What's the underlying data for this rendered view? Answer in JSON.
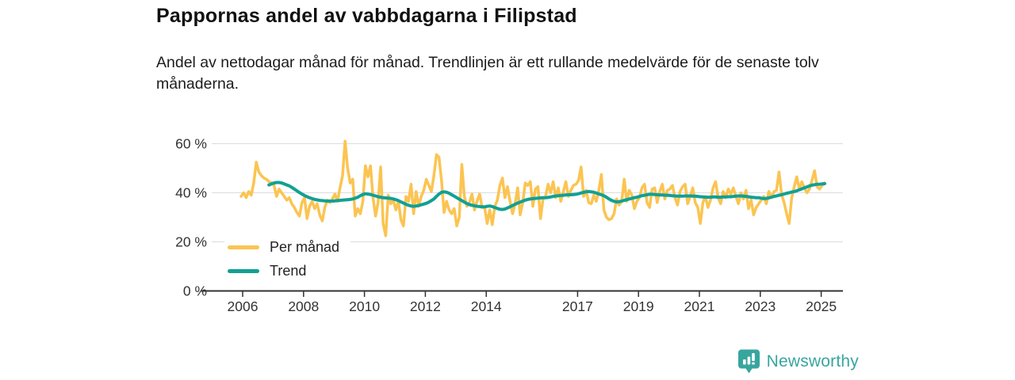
{
  "title": "Pappornas andel av vabbdagarna i Filipstad",
  "subtitle": "Andel av nettodagar månad för månad. Trendlinjen är ett rullande medelvärde för de senaste tolv månaderna.",
  "branding": {
    "logo_text": "Newsworthy",
    "logo_color": "#38a59f"
  },
  "colors": {
    "monthly_line": "#fbc452",
    "trend_line": "#12a093",
    "grid": "#dcdcdc",
    "axis": "#333333"
  },
  "chart_data": {
    "type": "line",
    "x_start": "2006-01",
    "x_end": "2025-03",
    "x_unit": "month",
    "grid": true,
    "legend_position": "bottom-left-inside",
    "yticks": [
      {
        "label": "0 %",
        "value": 0
      },
      {
        "label": "20 %",
        "value": 20
      },
      {
        "label": "40 %",
        "value": 40
      },
      {
        "label": "60 %",
        "value": 60
      }
    ],
    "ylim": [
      0,
      63
    ],
    "xticks": [
      {
        "label": "2006",
        "year": 2006
      },
      {
        "label": "2008",
        "year": 2008
      },
      {
        "label": "2010",
        "year": 2010
      },
      {
        "label": "2012",
        "year": 2012
      },
      {
        "label": "2014",
        "year": 2014
      },
      {
        "label": "2017",
        "year": 2017
      },
      {
        "label": "2019",
        "year": 2019
      },
      {
        "label": "2021",
        "year": 2021
      },
      {
        "label": "2023",
        "year": 2023
      },
      {
        "label": "2025",
        "year": 2025
      }
    ],
    "series": [
      {
        "name": "Per månad",
        "color": "#fbc452",
        "stroke_width": 3.5,
        "start_month_index": 0,
        "values": [
          38.5,
          40,
          38,
          40.5,
          39,
          44,
          52.5,
          48.5,
          47,
          46,
          45.5,
          44.5,
          44,
          43,
          38.5,
          41.5,
          40,
          38.5,
          37,
          38,
          35.5,
          34,
          32,
          30.5,
          36,
          38,
          29.5,
          34.5,
          36.5,
          33.5,
          35.5,
          31,
          28.5,
          34,
          37,
          36,
          37.5,
          39.5,
          36.5,
          42,
          47,
          61,
          50,
          44,
          45.5,
          30.5,
          33.5,
          31.5,
          36.5,
          51,
          46.5,
          51,
          38,
          30.5,
          36,
          50.5,
          27.5,
          22.5,
          39,
          35.5,
          37,
          33,
          36.5,
          29,
          26.5,
          38.5,
          36.5,
          43.5,
          31.5,
          40.5,
          34.5,
          38.5,
          41,
          45.5,
          43,
          40.5,
          47,
          55.5,
          54.5,
          45,
          32,
          36.5,
          33,
          31.5,
          33.5,
          26.5,
          30,
          51.5,
          38.5,
          34.5,
          36,
          39.5,
          33,
          36.5,
          39.5,
          34,
          34,
          27.5,
          33,
          27,
          34.5,
          37,
          43,
          46,
          38,
          42.5,
          36.5,
          31.5,
          35.5,
          42,
          31,
          36,
          44,
          43,
          44.5,
          34.5,
          41.5,
          42.5,
          29.5,
          37.5,
          38.5,
          43.5,
          40,
          44.5,
          38,
          42,
          36.5,
          40.5,
          44.5,
          38.5,
          41,
          43,
          43.5,
          45,
          50.5,
          38.5,
          41,
          36,
          35.5,
          39,
          36.5,
          41,
          47.5,
          33,
          30,
          29,
          29.5,
          31.5,
          37.5,
          35,
          36.5,
          45.5,
          36.5,
          41,
          39,
          33.5,
          36.5,
          38,
          42,
          43.5,
          36,
          34,
          41.5,
          42,
          36,
          40.5,
          43.5,
          37.5,
          41,
          41.5,
          43,
          38,
          35,
          40.5,
          42.5,
          43.5,
          35.5,
          38.5,
          42,
          36,
          34,
          27.5,
          36,
          38.5,
          34,
          37,
          42,
          44.5,
          38,
          35.5,
          40.5,
          38,
          41.5,
          39.5,
          42,
          38.5,
          35.5,
          40,
          37.5,
          41,
          33.5,
          37,
          31,
          34,
          35.5,
          37,
          38.5,
          35.5,
          40.5,
          38,
          40.5,
          41,
          48.5,
          39.5,
          36,
          31.5,
          27.5,
          38,
          42.5,
          46.5,
          41.5,
          44.5,
          42,
          40,
          41.5,
          45,
          49,
          42.5,
          41.5,
          43,
          44
        ]
      },
      {
        "name": "Trend",
        "color": "#12a093",
        "stroke_width": 4,
        "start_month_index": 11,
        "values": [
          43.2,
          43.6,
          44,
          44.2,
          44.2,
          44,
          43.6,
          43.2,
          42.8,
          42.2,
          41.5,
          40.8,
          40.1,
          39.5,
          38.9,
          38.4,
          38,
          37.6,
          37.3,
          37.1,
          36.9,
          36.8,
          36.7,
          36.6,
          36.6,
          36.6,
          36.7,
          36.8,
          36.9,
          37,
          37.1,
          37.2,
          37.3,
          37.5,
          37.8,
          38.2,
          38.8,
          39.3,
          39.6,
          39.5,
          39.3,
          39,
          38.7,
          38.4,
          38.2,
          38,
          37.9,
          37.8,
          37.7,
          37.5,
          37.2,
          36.8,
          36.3,
          35.8,
          35.3,
          34.9,
          34.6,
          34.5,
          34.6,
          34.8,
          35.1,
          35.4,
          35.7,
          36.2,
          36.8,
          37.5,
          38.5,
          39.5,
          40.2,
          40.4,
          40.2,
          39.8,
          39.2,
          38.6,
          38,
          37.4,
          36.8,
          36.2,
          35.6,
          35.2,
          34.9,
          34.7,
          34.5,
          34.4,
          34.3,
          34.3,
          34.5,
          34.6,
          34.4,
          34,
          33.6,
          33.3,
          33.2,
          33.4,
          33.8,
          34.3,
          34.8,
          35.3,
          35.8,
          36.2,
          36.6,
          37,
          37.3,
          37.5,
          37.6,
          37.7,
          37.8,
          37.9,
          38,
          38,
          38.1,
          38.3,
          38.5,
          38.7,
          38.8,
          38.9,
          39,
          39.1,
          39.2,
          39.2,
          39.3,
          39.4,
          39.6,
          39.9,
          40.2,
          40.4,
          40.5,
          40.4,
          40.2,
          39.9,
          39.5,
          39.2,
          38.8,
          38.2,
          37.5,
          36.9,
          36.5,
          36.3,
          36.4,
          36.6,
          36.9,
          37.2,
          37.5,
          37.7,
          38,
          38.2,
          38.5,
          38.8,
          39,
          39.2,
          39.4,
          39.4,
          39.3,
          39.2,
          39.1,
          39.1,
          39,
          39,
          38.9,
          38.8,
          38.7,
          38.6,
          38.6,
          38.6,
          38.7,
          38.7,
          38.7,
          38.6,
          38.6,
          38.5,
          38.4,
          38.3,
          38.2,
          38.2,
          38.2,
          38.3,
          38.3,
          38.2,
          38.2,
          38.3,
          38.3,
          38.4,
          38.4,
          38.5,
          38.6,
          38.7,
          38.7,
          38.6,
          38.5,
          38.4,
          38.2,
          38.1,
          38,
          38,
          37.8,
          37.6,
          37.7,
          37.9,
          38.2,
          38.5,
          38.7,
          39,
          39.2,
          39.5,
          39.8,
          40,
          40.3,
          40.5,
          40.8,
          41.2,
          41.6,
          42,
          42.4,
          42.8,
          43.1,
          43.3,
          43.5,
          43.5,
          43.6,
          43.7
        ]
      }
    ]
  }
}
